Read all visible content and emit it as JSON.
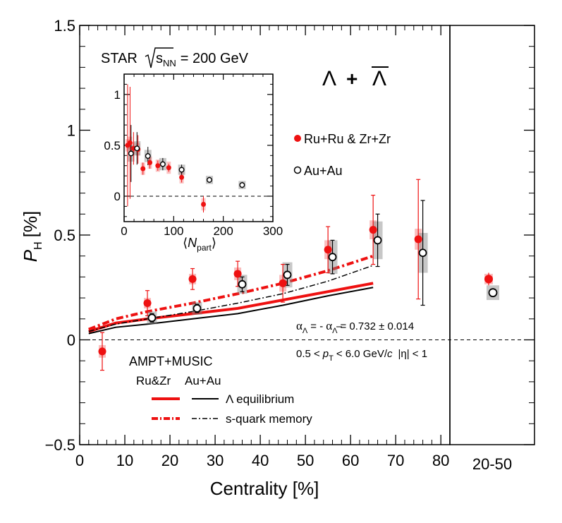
{
  "chart_data": [
    {
      "type": "scatter",
      "name": "main-panel",
      "xlabel": "Centrality [%]",
      "ylabel_main": "P",
      "ylabel_sub": "H",
      "ylabel_unit": "[%]",
      "xlim": [
        0,
        82
      ],
      "ylim": [
        -0.5,
        1.5
      ],
      "xticks": [
        0,
        10,
        20,
        30,
        40,
        50,
        60,
        70,
        80
      ],
      "yticks": [
        -0.5,
        0,
        0.5,
        1,
        1.5
      ],
      "ytick_labels": [
        "−0.5",
        "0",
        "0.5",
        "1",
        "1.5"
      ],
      "label_a_pre": "STAR",
      "label_a_root": "s",
      "label_a_sub": "NN",
      "label_a_post": "= 200 GeV",
      "label_b_lambda": "Λ",
      "label_b_plus": "+",
      "label_b_anti": "Λ",
      "alpha_a": "α",
      "alpha_a_sub": "Λ",
      "alpha_eq": "= -",
      "alpha_b": "α",
      "alpha_b_sub": "Λ",
      "alpha_value": "= 0.732 ± 0.014",
      "kin_pre": "0.5 <",
      "kin_p": "p",
      "kin_p_sub": "T",
      "kin_range": "< 6.0 GeV/",
      "kin_c": "c",
      "kin_eta": "|η| < 1",
      "series": [
        {
          "name": "Ru+Ru & Zr+Zr",
          "color": "#ee1111",
          "marker": "filled-circle",
          "x": [
            5,
            15,
            25,
            35,
            45,
            55,
            65,
            75
          ],
          "y": [
            -0.055,
            0.175,
            0.29,
            0.315,
            0.27,
            0.43,
            0.525,
            0.48
          ],
          "stat_err": [
            0.09,
            0.06,
            0.05,
            0.06,
            0.09,
            0.11,
            0.165,
            0.285
          ],
          "sys_err": [
            0.03,
            0.025,
            0.025,
            0.03,
            0.04,
            0.045,
            0.045,
            0.05
          ]
        },
        {
          "name": "Au+Au",
          "color": "#000000",
          "marker": "open-circle",
          "x": [
            16,
            26,
            36,
            46,
            56,
            66,
            76
          ],
          "y": [
            0.105,
            0.15,
            0.265,
            0.31,
            0.395,
            0.475,
            0.415
          ],
          "stat_err": [
            0.02,
            0.02,
            0.035,
            0.05,
            0.08,
            0.125,
            0.25
          ],
          "sys_err": [
            0.03,
            0.03,
            0.045,
            0.06,
            0.08,
            0.09,
            0.095
          ]
        }
      ],
      "model_title": "AMPT+MUSIC",
      "model_col1": "Ru&Zr",
      "model_col2": "Au+Au",
      "models": [
        {
          "name": "Λ equilibrium",
          "system": "Ru&Zr",
          "color": "#ee1111",
          "style": "solid-thick",
          "x": [
            2,
            8,
            15,
            25,
            35,
            45,
            55,
            65
          ],
          "y": [
            0.04,
            0.08,
            0.1,
            0.125,
            0.15,
            0.19,
            0.23,
            0.27
          ]
        },
        {
          "name": "Λ equilibrium",
          "system": "Au+Au",
          "color": "#000000",
          "style": "solid",
          "x": [
            2,
            8,
            15,
            25,
            35,
            45,
            55,
            65
          ],
          "y": [
            0.03,
            0.06,
            0.075,
            0.1,
            0.125,
            0.165,
            0.21,
            0.25
          ]
        },
        {
          "name": "s-quark memory",
          "system": "Ru&Zr",
          "color": "#ee1111",
          "style": "dashdot-thick",
          "x": [
            2,
            8,
            15,
            25,
            35,
            45,
            55,
            65
          ],
          "y": [
            0.05,
            0.1,
            0.135,
            0.175,
            0.22,
            0.27,
            0.33,
            0.4
          ]
        },
        {
          "name": "s-quark memory",
          "system": "Au+Au",
          "color": "#000000",
          "style": "dashdot",
          "x": [
            2,
            8,
            15,
            25,
            35,
            45,
            55,
            65
          ],
          "y": [
            0.04,
            0.075,
            0.1,
            0.135,
            0.175,
            0.22,
            0.28,
            0.355
          ]
        }
      ]
    },
    {
      "type": "scatter",
      "name": "integrated-panel",
      "category": "20-50",
      "series": [
        {
          "name": "Ru+Ru & Zr+Zr",
          "color": "#ee1111",
          "y": 0.29,
          "stat_err": 0.03,
          "sys_err": 0.025
        },
        {
          "name": "Au+Au",
          "color": "#000000",
          "y": 0.225,
          "stat_err": 0.015,
          "sys_err": 0.035
        }
      ]
    },
    {
      "type": "scatter",
      "name": "inset-panel",
      "xlabel": "N",
      "xlabel_sub": "part",
      "xlim": [
        0,
        300
      ],
      "ylim": [
        -0.25,
        1.2
      ],
      "xticks": [
        0,
        100,
        200,
        300
      ],
      "yticks": [
        0,
        0.5,
        1
      ],
      "ytick_labels": [
        "0",
        "0.5",
        "1"
      ],
      "series": [
        {
          "name": "Ru+Ru & Zr+Zr",
          "color": "#ee1111",
          "x": [
            7,
            12,
            19,
            28,
            38,
            52,
            68,
            90,
            116,
            160
          ],
          "y": [
            0.5,
            0.525,
            0.47,
            0.46,
            0.27,
            0.33,
            0.3,
            0.28,
            0.185,
            -0.08
          ],
          "stat_err": [
            0.6,
            0.55,
            0.16,
            0.14,
            0.06,
            0.06,
            0.05,
            0.04,
            0.05,
            0.08
          ]
        },
        {
          "name": "Au+Au",
          "color": "#000000",
          "x": [
            14,
            26,
            48,
            78,
            116,
            172,
            238
          ],
          "y": [
            0.42,
            0.47,
            0.395,
            0.315,
            0.26,
            0.16,
            0.11
          ],
          "stat_err": [
            0.28,
            0.16,
            0.09,
            0.06,
            0.05,
            0.03,
            0.03
          ],
          "sys_err": [
            0.08,
            0.07,
            0.06,
            0.06,
            0.05,
            0.04,
            0.04
          ]
        }
      ]
    }
  ]
}
